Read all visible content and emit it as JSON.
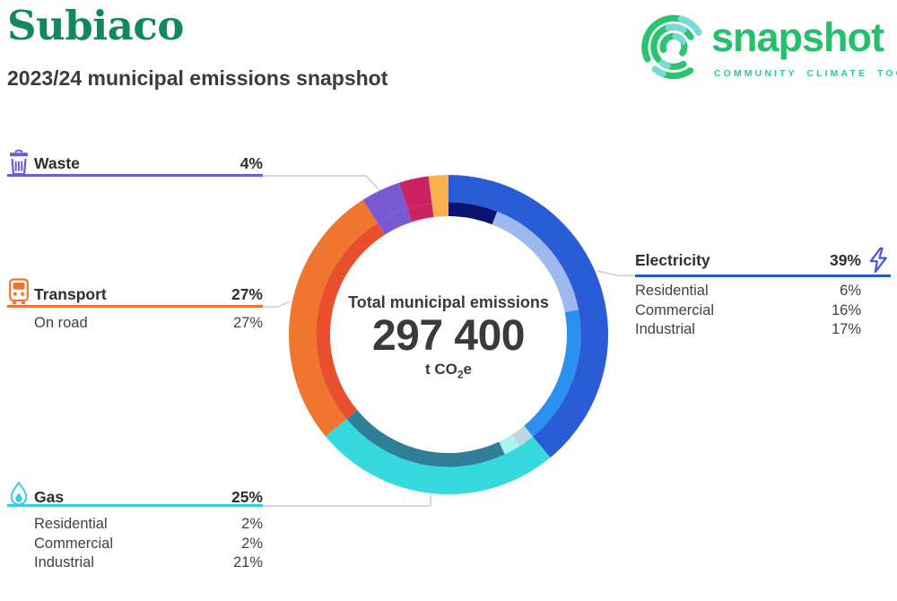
{
  "header": {
    "title": "Subiaco",
    "subtitle": "2023/24 municipal emissions snapshot"
  },
  "logo": {
    "wordmark": "snapshot",
    "tagline": "COMMUNITY CLIMATE TOOL",
    "green": "#29c46e",
    "teal": "#7adad2",
    "tagline_color": "#2ec5a2"
  },
  "center": {
    "label": "Total municipal emissions",
    "value": "297 400",
    "unit_pre": "t CO",
    "unit_sub": "2",
    "unit_post": "e"
  },
  "categories": {
    "waste": {
      "label": "Waste",
      "value": "4%",
      "color": "#6a5bd8",
      "rows": []
    },
    "transport": {
      "label": "Transport",
      "value": "27%",
      "color": "#f0742e",
      "rows": [
        {
          "label": "On road",
          "value": "27%"
        }
      ]
    },
    "gas": {
      "label": "Gas",
      "value": "25%",
      "color": "#3bcbdc",
      "rows": [
        {
          "label": "Residential",
          "value": "2%"
        },
        {
          "label": "Commercial",
          "value": "2%"
        },
        {
          "label": "Industrial",
          "value": "21%"
        }
      ]
    },
    "electricity": {
      "label": "Electricity",
      "value": "39%",
      "color": "#2357c9",
      "rows": [
        {
          "label": "Residential",
          "value": "6%"
        },
        {
          "label": "Commercial",
          "value": "16%"
        },
        {
          "label": "Industrial",
          "value": "17%"
        }
      ]
    }
  },
  "chart_data": {
    "type": "donut",
    "title": "Total municipal emissions",
    "total_label": "297 400",
    "total_value": 297400,
    "unit": "t CO2e",
    "start_angle_deg": 0,
    "direction": "clockwise",
    "outer_ring": [
      {
        "label": "Electricity",
        "pct": 39,
        "color": "#2a5cd7"
      },
      {
        "label": "Gas",
        "pct": 25,
        "color": "#35d9de"
      },
      {
        "label": "Transport",
        "pct": 27,
        "color": "#f0752f"
      },
      {
        "label": "Waste",
        "pct": 4,
        "color": "#7a5ad4"
      },
      {
        "label": "",
        "pct": 3,
        "color": "#cb2362"
      },
      {
        "label": "",
        "pct": 2,
        "color": "#f9b04d"
      }
    ],
    "inner_ring": [
      {
        "label": "Electricity Residential",
        "pct": 6,
        "color": "#0a1272"
      },
      {
        "label": "Electricity Commercial",
        "pct": 16,
        "color": "#9eb8f0"
      },
      {
        "label": "Electricity Industrial",
        "pct": 17,
        "color": "#2c90f0"
      },
      {
        "label": "Gas Residential",
        "pct": 2,
        "color": "#bed9de"
      },
      {
        "label": "Gas Commercial",
        "pct": 2,
        "color": "#abf3f0"
      },
      {
        "label": "Gas Industrial",
        "pct": 21,
        "color": "#2f7f99"
      },
      {
        "label": "Transport On road",
        "pct": 27,
        "color": "#e94f2d"
      },
      {
        "label": "Waste",
        "pct": 4,
        "color": "#7a5ad4"
      },
      {
        "label": "",
        "pct": 3,
        "color": "#cb2362"
      },
      {
        "label": "",
        "pct": 2,
        "color": "#f9b04d"
      }
    ]
  }
}
